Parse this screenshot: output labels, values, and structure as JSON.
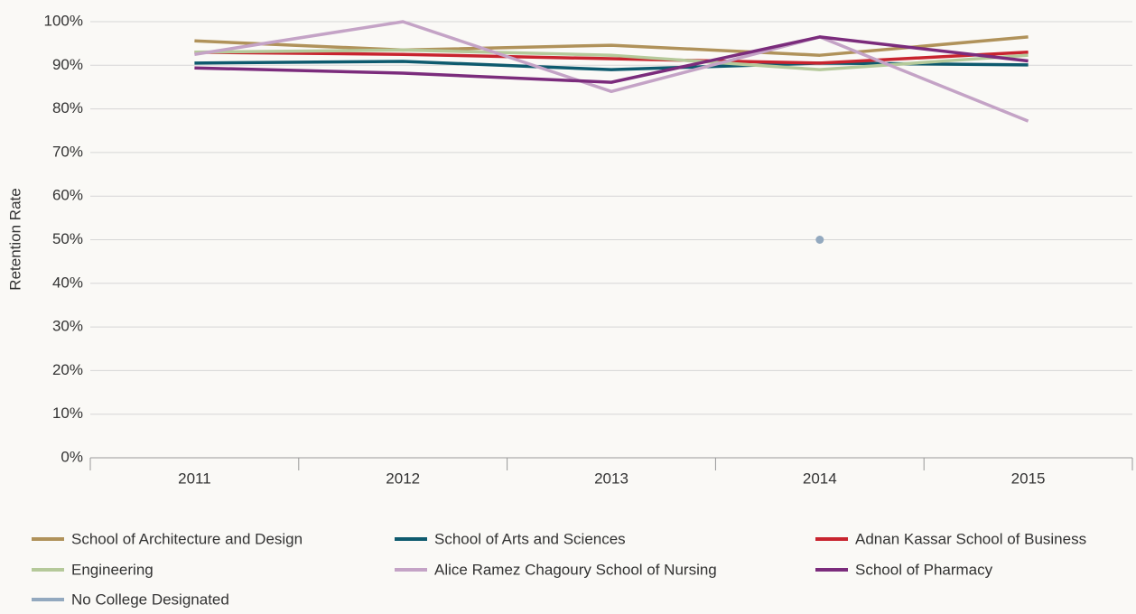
{
  "chart_data": {
    "type": "line",
    "ylabel": "Retention Rate",
    "categories": [
      "2011",
      "2012",
      "2013",
      "2014",
      "2015"
    ],
    "series": [
      {
        "name": "School of Architecture and Design",
        "color": "#b0925a",
        "values": [
          95.6,
          93.5,
          94.6,
          92.3,
          96.5
        ]
      },
      {
        "name": "School of Arts and Sciences",
        "color": "#0e5a6e",
        "values": [
          90.5,
          90.9,
          89,
          90.5,
          90.1
        ]
      },
      {
        "name": "Adnan Kassar School of Business",
        "color": "#c8242f",
        "values": [
          93,
          92.5,
          91.5,
          90.5,
          93
        ]
      },
      {
        "name": "Engineering",
        "color": "#b5c99a",
        "values": [
          93,
          93.5,
          92.3,
          89,
          92.3
        ]
      },
      {
        "name": "Alice Ramez Chagoury School of Nursing",
        "color": "#c4a3c6",
        "values": [
          92.5,
          100,
          84,
          96.5,
          77.2
        ]
      },
      {
        "name": "School of Pharmacy",
        "color": "#7b2c7c",
        "values": [
          89.4,
          88.2,
          86.1,
          96.5,
          91
        ]
      },
      {
        "name": "No College Designated",
        "color": "#93a9bf",
        "values": [
          null,
          null,
          null,
          50,
          null
        ]
      }
    ],
    "ylim": [
      0,
      100
    ],
    "yticks": [
      {
        "value": 0,
        "label": "0%"
      },
      {
        "value": 10,
        "label": "10%"
      },
      {
        "value": 20,
        "label": "20%"
      },
      {
        "value": 30,
        "label": "30%"
      },
      {
        "value": 40,
        "label": "40%"
      },
      {
        "value": 50,
        "label": "50%"
      },
      {
        "value": 60,
        "label": "60%"
      },
      {
        "value": 70,
        "label": "70%"
      },
      {
        "value": 80,
        "label": "80%"
      },
      {
        "value": 90,
        "label": "90%"
      },
      {
        "value": 100,
        "label": "100%"
      }
    ],
    "grid": true,
    "legend": "bottom"
  }
}
